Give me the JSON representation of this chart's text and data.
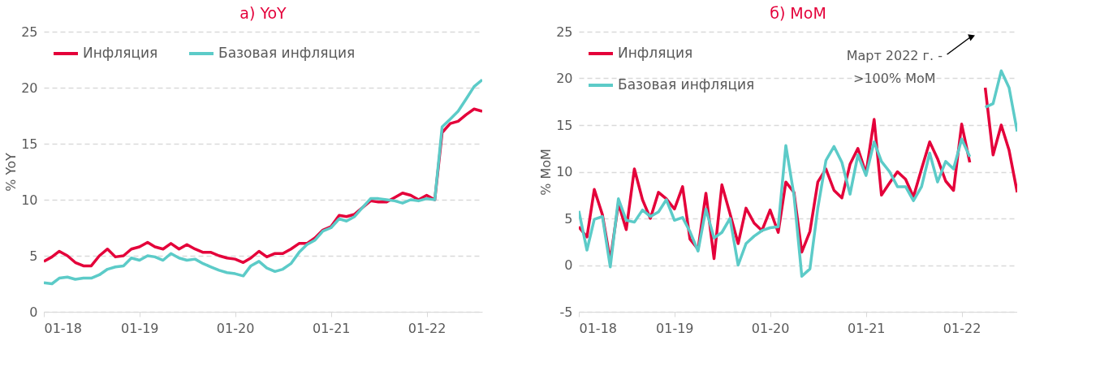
{
  "chart_data": [
    {
      "type": "line",
      "title": "а) YoY",
      "ylabel": "% YoY",
      "legend": "top left",
      "grid": "y",
      "line_style": "solid",
      "marker": "none",
      "x": [
        "2018-01",
        "2018-02",
        "2018-03",
        "2018-04",
        "2018-05",
        "2018-06",
        "2018-07",
        "2018-08",
        "2018-09",
        "2018-10",
        "2018-11",
        "2018-12",
        "2019-01",
        "2019-02",
        "2019-03",
        "2019-04",
        "2019-05",
        "2019-06",
        "2019-07",
        "2019-08",
        "2019-09",
        "2019-10",
        "2019-11",
        "2019-12",
        "2020-01",
        "2020-02",
        "2020-03",
        "2020-04",
        "2020-05",
        "2020-06",
        "2020-07",
        "2020-08",
        "2020-09",
        "2020-10",
        "2020-11",
        "2020-12",
        "2021-01",
        "2021-02",
        "2021-03",
        "2021-04",
        "2021-05",
        "2021-06",
        "2021-07",
        "2021-08",
        "2021-09",
        "2021-10",
        "2021-11",
        "2021-12",
        "2022-01",
        "2022-02",
        "2022-03",
        "2022-04",
        "2022-05",
        "2022-06",
        "2022-07",
        "2022-08"
      ],
      "xlim": [
        "2018-01",
        "2022-08"
      ],
      "xticks": [
        {
          "value": "2018-01",
          "label": "01-18"
        },
        {
          "value": "2019-01",
          "label": "01-19"
        },
        {
          "value": "2020-01",
          "label": "01-20"
        },
        {
          "value": "2021-01",
          "label": "01-21"
        },
        {
          "value": "2022-01",
          "label": "01-22"
        }
      ],
      "ylim": [
        0,
        25
      ],
      "yticks": [
        0,
        5,
        10,
        15,
        20,
        25
      ],
      "series": [
        {
          "name": "Инфляция",
          "color": "#e4003a",
          "values": [
            4.5,
            4.9,
            5.4,
            5.0,
            4.4,
            4.1,
            4.1,
            5.0,
            5.6,
            4.9,
            5.0,
            5.6,
            5.8,
            6.2,
            5.8,
            5.6,
            6.1,
            5.6,
            6.0,
            5.6,
            5.3,
            5.3,
            5.0,
            4.8,
            4.7,
            4.4,
            4.8,
            5.4,
            4.9,
            5.2,
            5.2,
            5.6,
            6.1,
            6.1,
            6.6,
            7.3,
            7.6,
            8.6,
            8.5,
            8.7,
            9.3,
            9.9,
            9.8,
            9.8,
            10.2,
            10.6,
            10.4,
            10.0,
            10.4,
            10.0,
            16.0,
            16.8,
            17.0,
            17.6,
            18.1,
            17.9
          ]
        },
        {
          "name": "Базовая инфляция",
          "color": "#5ccbc8",
          "values": [
            2.6,
            2.5,
            3.0,
            3.1,
            2.9,
            3.0,
            3.0,
            3.3,
            3.8,
            4.0,
            4.1,
            4.8,
            4.6,
            5.0,
            4.9,
            4.6,
            5.2,
            4.8,
            4.6,
            4.7,
            4.3,
            4.0,
            3.7,
            3.5,
            3.4,
            3.2,
            4.1,
            4.5,
            3.9,
            3.6,
            3.8,
            4.3,
            5.3,
            6.0,
            6.4,
            7.2,
            7.5,
            8.3,
            8.1,
            8.5,
            9.3,
            10.1,
            10.1,
            10.0,
            9.9,
            9.7,
            10.0,
            9.9,
            10.1,
            10.0,
            16.5,
            17.2,
            17.9,
            19.0,
            20.1,
            20.7
          ]
        }
      ]
    },
    {
      "type": "line",
      "title": "б) MoM",
      "ylabel": "% MoM",
      "legend": "top left",
      "grid": "y",
      "line_style": "solid",
      "marker": "none",
      "x": [
        "2018-01",
        "2018-02",
        "2018-03",
        "2018-04",
        "2018-05",
        "2018-06",
        "2018-07",
        "2018-08",
        "2018-09",
        "2018-10",
        "2018-11",
        "2018-12",
        "2019-01",
        "2019-02",
        "2019-03",
        "2019-04",
        "2019-05",
        "2019-06",
        "2019-07",
        "2019-08",
        "2019-09",
        "2019-10",
        "2019-11",
        "2019-12",
        "2020-01",
        "2020-02",
        "2020-03",
        "2020-04",
        "2020-05",
        "2020-06",
        "2020-07",
        "2020-08",
        "2020-09",
        "2020-10",
        "2020-11",
        "2020-12",
        "2021-01",
        "2021-02",
        "2021-03",
        "2021-04",
        "2021-05",
        "2021-06",
        "2021-07",
        "2021-08",
        "2021-09",
        "2021-10",
        "2021-11",
        "2021-12",
        "2022-01",
        "2022-02",
        "2022-03",
        "2022-04",
        "2022-05",
        "2022-06",
        "2022-07",
        "2022-08"
      ],
      "xlim": [
        "2018-01",
        "2022-08"
      ],
      "xticks": [
        {
          "value": "2018-01",
          "label": "01-18"
        },
        {
          "value": "2019-01",
          "label": "01-19"
        },
        {
          "value": "2020-01",
          "label": "01-20"
        },
        {
          "value": "2021-01",
          "label": "01-21"
        },
        {
          "value": "2022-01",
          "label": "01-22"
        }
      ],
      "ylim": [
        -5,
        25
      ],
      "yticks": [
        -5,
        0,
        5,
        10,
        15,
        20,
        25
      ],
      "annotations": [
        "Март 2022 г. -\n>100% MoM"
      ],
      "series": [
        {
          "name": "Инфляция",
          "color": "#e4003a",
          "values": [
            4.1,
            3.0,
            8.1,
            5.4,
            0.5,
            6.6,
            3.8,
            10.3,
            7.0,
            5.0,
            7.8,
            7.1,
            6.0,
            8.4,
            2.8,
            1.7,
            7.7,
            0.7,
            8.6,
            5.5,
            2.3,
            6.1,
            4.5,
            3.7,
            5.9,
            3.5,
            8.9,
            7.8,
            1.4,
            3.6,
            8.9,
            10.3,
            8.0,
            7.2,
            10.8,
            12.5,
            9.8,
            15.6,
            7.5,
            8.8,
            10.0,
            9.2,
            7.3,
            10.3,
            13.2,
            11.4,
            9.0,
            8.0,
            15.1,
            11.0,
            null,
            19.0,
            11.8,
            15.0,
            12.3,
            7.8
          ]
        },
        {
          "name": "Базовая инфляция",
          "color": "#5ccbc8",
          "values": [
            5.8,
            1.6,
            4.9,
            5.2,
            -0.2,
            7.1,
            4.8,
            4.6,
            5.9,
            5.2,
            5.7,
            7.0,
            4.8,
            5.1,
            3.6,
            1.5,
            6.0,
            2.9,
            3.5,
            5.0,
            0.0,
            2.3,
            3.1,
            3.7,
            4.0,
            4.1,
            12.8,
            7.5,
            -1.2,
            -0.4,
            6.1,
            11.2,
            12.7,
            11.0,
            7.6,
            11.8,
            9.6,
            13.2,
            11.1,
            10.0,
            8.4,
            8.4,
            6.9,
            8.4,
            12.0,
            8.9,
            11.1,
            10.3,
            13.5,
            11.6,
            null,
            16.9,
            17.3,
            20.8,
            19.0,
            14.3
          ]
        }
      ]
    }
  ]
}
